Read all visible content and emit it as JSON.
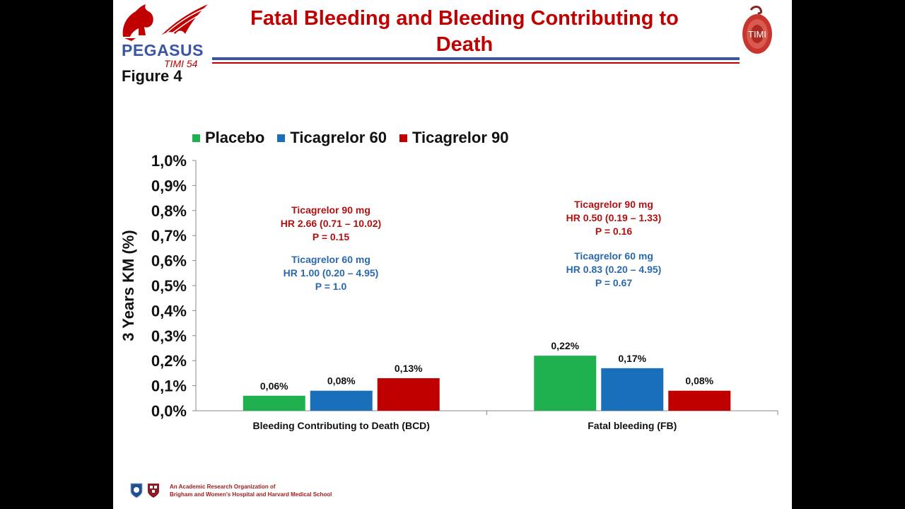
{
  "header": {
    "title": "Fatal Bleeding and Bleeding Contributing to Death",
    "figure_label": "Figure 4",
    "logo_left_word": "PEGASUS",
    "logo_left_sub": "TIMI 54",
    "logo_right_word": "TIMI"
  },
  "colors": {
    "placebo": "#1fb150",
    "ticagrelor60": "#1a6fba",
    "ticagrelor90": "#c00000",
    "title": "#c00000",
    "rule_blue": "#3a55a4"
  },
  "annotations": {
    "bcd": {
      "t90_name": "Ticagrelor 90 mg",
      "t90_hr": "HR 2.66 (0.71 – 10.02)",
      "t90_p": "P = 0.15",
      "t60_name": "Ticagrelor 60 mg",
      "t60_hr": "HR 1.00 (0.20 – 4.95)",
      "t60_p": "P = 1.0"
    },
    "fb": {
      "t90_name": "Ticagrelor 90 mg",
      "t90_hr": "HR 0.50 (0.19 – 1.33)",
      "t90_p": "P = 0.16",
      "t60_name": "Ticagrelor 60 mg",
      "t60_hr": "HR 0.83 (0.20 – 4.95)",
      "t60_p": "P = 0.67"
    }
  },
  "footer": {
    "line1": "An Academic Research Organization of",
    "line2": "Brigham and Women's Hospital and Harvard Medical School"
  },
  "chart_data": {
    "type": "bar",
    "title": "",
    "xlabel": "",
    "ylabel": "3 Years KM (%)",
    "ylim": [
      0,
      1.0
    ],
    "yticks": [
      0,
      0.1,
      0.2,
      0.3,
      0.4,
      0.5,
      0.6,
      0.7,
      0.8,
      0.9,
      1.0
    ],
    "ytick_labels": [
      "0,0%",
      "0,1%",
      "0,2%",
      "0,3%",
      "0,4%",
      "0,5%",
      "0,6%",
      "0,7%",
      "0,8%",
      "0,9%",
      "1,0%"
    ],
    "categories": [
      "Bleeding Contributing to Death (BCD)",
      "Fatal bleeding (FB)"
    ],
    "series": [
      {
        "name": "Placebo",
        "values": [
          0.06,
          0.22
        ],
        "labels": [
          "0,06%",
          "0,22%"
        ],
        "color": "#1fb150"
      },
      {
        "name": "Ticagrelor 60",
        "values": [
          0.08,
          0.17
        ],
        "labels": [
          "0,08%",
          "0,17%"
        ],
        "color": "#1a6fba"
      },
      {
        "name": "Ticagrelor 90",
        "values": [
          0.13,
          0.08
        ],
        "labels": [
          "0,13%",
          "0,08%"
        ],
        "color": "#c00000"
      }
    ],
    "legend_position": "top",
    "grid": false
  }
}
